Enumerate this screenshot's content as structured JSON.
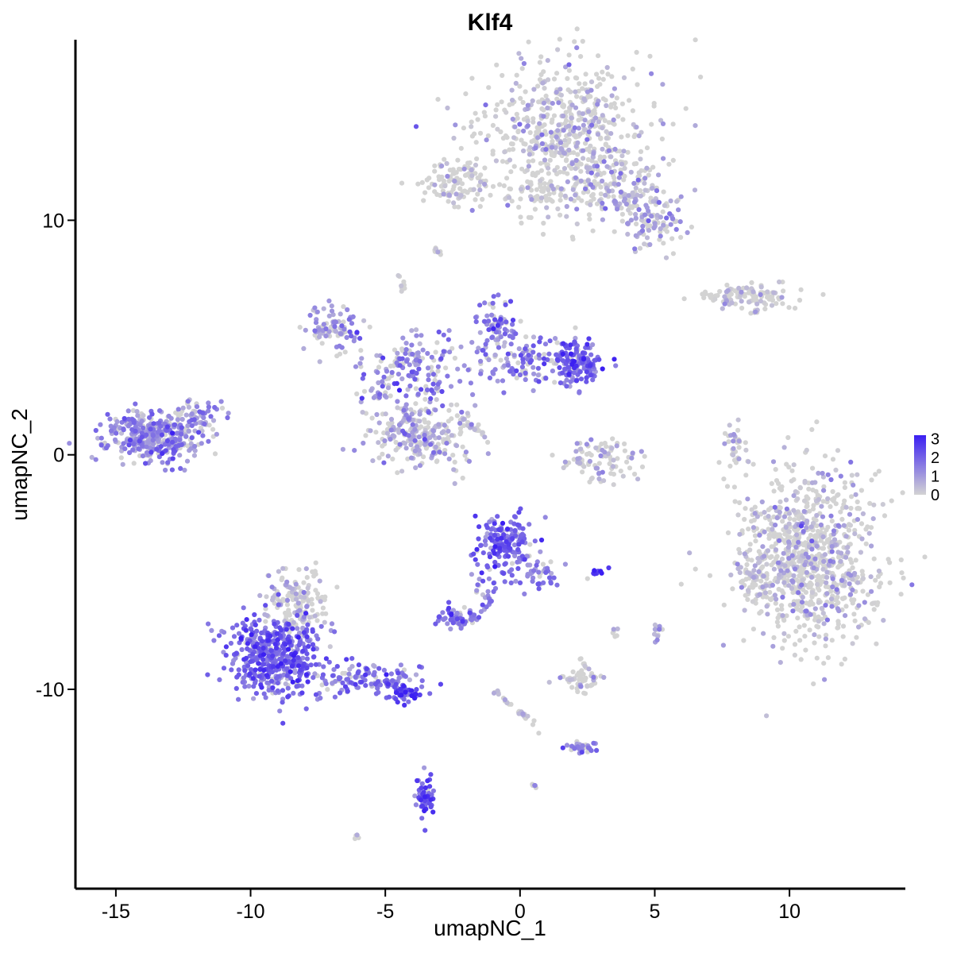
{
  "chart_data": {
    "type": "scatter",
    "title": "Klf4",
    "xlabel": "umapNC_1",
    "ylabel": "umapNC_2",
    "xlim": [
      -16.5,
      14.3
    ],
    "ylim": [
      -18.5,
      17.7
    ],
    "x_ticks": [
      -15,
      -10,
      -5,
      0,
      5,
      10
    ],
    "x_tick_labels": [
      "-15",
      "-10",
      "-5",
      "0",
      "5",
      "10"
    ],
    "y_ticks": [
      -10,
      0,
      10
    ],
    "y_tick_labels": [
      "-10",
      "0",
      "10"
    ],
    "grid": false,
    "legend": {
      "placement": "right",
      "min": 0,
      "max": 3.2,
      "ticks": [
        0,
        1,
        2,
        3
      ],
      "tick_labels": [
        "0",
        "1",
        "2",
        "3"
      ],
      "color_low": "#d3d3d3",
      "color_high": "#3b1ff2"
    },
    "clusters": [
      {
        "name": "top-right-large",
        "cx": 1.6,
        "cy": 13.6,
        "sx": 1.5,
        "sy": 1.6,
        "n": 620,
        "expr": 0.35,
        "seed": 11
      },
      {
        "name": "top-right-arm",
        "cx": 3.9,
        "cy": 11.2,
        "sx": 0.9,
        "sy": 0.7,
        "n": 160,
        "expr": 0.7,
        "seed": 12
      },
      {
        "name": "top-right-tip",
        "cx": 4.9,
        "cy": 9.7,
        "sx": 0.6,
        "sy": 0.5,
        "n": 70,
        "expr": 0.9,
        "seed": 13
      },
      {
        "name": "top-small-left",
        "cx": -2.3,
        "cy": 11.6,
        "sx": 0.7,
        "sy": 0.45,
        "n": 110,
        "expr": 0.1,
        "seed": 14
      },
      {
        "name": "top-mid-bridge",
        "cx": 0.8,
        "cy": 11.2,
        "sx": 0.6,
        "sy": 0.35,
        "n": 40,
        "expr": 0.2,
        "seed": 15
      },
      {
        "name": "right-strip",
        "cx": 8.4,
        "cy": 6.8,
        "sx": 1.0,
        "sy": 0.22,
        "n": 110,
        "expr": 0.2,
        "seed": 16
      },
      {
        "name": "left-isolated",
        "cx": -13.6,
        "cy": 0.8,
        "sx": 0.85,
        "sy": 0.55,
        "n": 380,
        "expr": 1.3,
        "seed": 17
      },
      {
        "name": "left-isolated-tail",
        "cx": -11.9,
        "cy": 1.7,
        "sx": 0.5,
        "sy": 0.35,
        "n": 50,
        "expr": 1.1,
        "seed": 18
      },
      {
        "name": "center-upper-left-lobe",
        "cx": -6.8,
        "cy": 5.4,
        "sx": 0.6,
        "sy": 0.5,
        "n": 90,
        "expr": 1.2,
        "seed": 19
      },
      {
        "name": "center-ring",
        "cx": -3.8,
        "cy": 0.9,
        "sx": 1.0,
        "sy": 0.75,
        "n": 260,
        "expr": 0.75,
        "seed": 20
      },
      {
        "name": "center-branch",
        "cx": -4.0,
        "cy": 3.6,
        "sx": 0.9,
        "sy": 0.8,
        "n": 140,
        "expr": 1.4,
        "seed": 21
      },
      {
        "name": "center-upper-middle",
        "cx": -0.8,
        "cy": 5.3,
        "sx": 0.5,
        "sy": 0.8,
        "n": 90,
        "expr": 1.5,
        "seed": 22
      },
      {
        "name": "center-right-dense",
        "cx": 2.0,
        "cy": 4.0,
        "sx": 0.55,
        "sy": 0.5,
        "n": 150,
        "expr": 2.0,
        "seed": 23
      },
      {
        "name": "center-arc",
        "cx": 0.3,
        "cy": 4.0,
        "sx": 1.2,
        "sy": 0.5,
        "n": 90,
        "expr": 1.4,
        "seed": 24
      },
      {
        "name": "small-crescent",
        "cx": 3.0,
        "cy": -0.2,
        "sx": 0.75,
        "sy": 0.5,
        "n": 90,
        "expr": 0.5,
        "seed": 25
      },
      {
        "name": "right-large",
        "cx": 10.7,
        "cy": -4.3,
        "sx": 1.3,
        "sy": 1.8,
        "n": 900,
        "expr": 0.35,
        "seed": 26
      },
      {
        "name": "right-large-left-edge",
        "cx": 8.7,
        "cy": -5.3,
        "sx": 0.4,
        "sy": 0.6,
        "n": 60,
        "expr": 0.2,
        "seed": 27
      },
      {
        "name": "lower-left-body",
        "cx": -9.0,
        "cy": -8.6,
        "sx": 0.9,
        "sy": 0.9,
        "n": 480,
        "expr": 1.9,
        "seed": 28
      },
      {
        "name": "lower-left-top",
        "cx": -8.3,
        "cy": -6.3,
        "sx": 0.55,
        "sy": 0.75,
        "n": 150,
        "expr": 0.3,
        "seed": 29
      },
      {
        "name": "lower-left-tail",
        "cx": -5.6,
        "cy": -9.6,
        "sx": 1.1,
        "sy": 0.35,
        "n": 130,
        "expr": 1.6,
        "seed": 30
      },
      {
        "name": "lower-left-tail-tip",
        "cx": -4.3,
        "cy": -10.2,
        "sx": 0.35,
        "sy": 0.15,
        "n": 40,
        "expr": 2.4,
        "seed": 31
      },
      {
        "name": "lower-center-main",
        "cx": -0.5,
        "cy": -3.8,
        "sx": 0.5,
        "sy": 0.65,
        "n": 160,
        "expr": 2.0,
        "seed": 32
      },
      {
        "name": "lower-center-arm",
        "cx": 0.6,
        "cy": -4.9,
        "sx": 0.5,
        "sy": 0.45,
        "n": 50,
        "expr": 1.5,
        "seed": 33
      },
      {
        "name": "lower-center-left",
        "cx": -2.3,
        "cy": -6.9,
        "sx": 0.35,
        "sy": 0.2,
        "n": 60,
        "expr": 1.7,
        "seed": 34
      },
      {
        "name": "lower-center-stem",
        "cx": -1.4,
        "cy": -5.7,
        "sx": 0.25,
        "sy": 0.5,
        "n": 25,
        "expr": 1.5,
        "seed": 35
      },
      {
        "name": "lower-mid-small",
        "cx": 2.3,
        "cy": -9.6,
        "sx": 0.45,
        "sy": 0.25,
        "n": 55,
        "expr": 0.2,
        "seed": 36
      },
      {
        "name": "lower-mid-right",
        "cx": 2.3,
        "cy": -12.5,
        "sx": 0.3,
        "sy": 0.15,
        "n": 30,
        "expr": 1.6,
        "seed": 37
      },
      {
        "name": "bottom-small",
        "cx": -3.5,
        "cy": -14.7,
        "sx": 0.2,
        "sy": 0.5,
        "n": 50,
        "expr": 2.2,
        "seed": 38
      },
      {
        "name": "mid-right-thin",
        "cx": 8.0,
        "cy": 0.3,
        "sx": 0.2,
        "sy": 0.5,
        "n": 35,
        "expr": 0.3,
        "seed": 39
      },
      {
        "name": "far-right-small",
        "cx": 5.1,
        "cy": -7.5,
        "sx": 0.1,
        "sy": 0.25,
        "n": 12,
        "expr": 1.0,
        "seed": 40
      },
      {
        "name": "small-blue-streak",
        "cx": 2.8,
        "cy": -5.0,
        "sx": 0.2,
        "sy": 0.08,
        "n": 12,
        "expr": 2.8,
        "seed": 41
      }
    ],
    "streaks": [
      {
        "x0": -1.0,
        "y0": -10.0,
        "x1": 0.8,
        "y1": -11.8,
        "n": 28,
        "expr": 0.4,
        "seed": 50
      },
      {
        "x0": -2.3,
        "y0": -1.7,
        "x1": -1.3,
        "y1": -1.2,
        "n": 0,
        "expr": 0.2,
        "seed": 51
      },
      {
        "x0": -2.2,
        "y0": 1.6,
        "x1": -1.3,
        "y1": 0.8,
        "n": 22,
        "expr": 0.5,
        "seed": 52
      },
      {
        "x0": -5.4,
        "y0": 2.3,
        "x1": -4.2,
        "y1": 4.8,
        "n": 22,
        "expr": 1.6,
        "seed": 53
      },
      {
        "x0": -4.5,
        "y0": 7.6,
        "x1": -4.3,
        "y1": 7.1,
        "n": 10,
        "expr": 0.2,
        "seed": 54
      },
      {
        "x0": -3.2,
        "y0": 8.8,
        "x1": -3.0,
        "y1": 8.6,
        "n": 8,
        "expr": 0.1,
        "seed": 55
      },
      {
        "x0": 3.5,
        "y0": -7.4,
        "x1": 3.5,
        "y1": -7.8,
        "n": 6,
        "expr": 0.3,
        "seed": 56
      },
      {
        "x0": 2.3,
        "y0": -8.6,
        "x1": 2.4,
        "y1": -9.0,
        "n": 6,
        "expr": 0.4,
        "seed": 57
      },
      {
        "x0": 0.5,
        "y0": -14.0,
        "x1": 0.6,
        "y1": -14.2,
        "n": 5,
        "expr": 1.5,
        "seed": 58
      },
      {
        "x0": -6.1,
        "y0": -16.3,
        "x1": -6.0,
        "y1": -16.2,
        "n": 4,
        "expr": 0.2,
        "seed": 59
      },
      {
        "x0": 8.5,
        "y0": 5.9,
        "x1": 8.8,
        "y1": 6.2,
        "n": 6,
        "expr": 0.5,
        "seed": 60
      }
    ]
  }
}
